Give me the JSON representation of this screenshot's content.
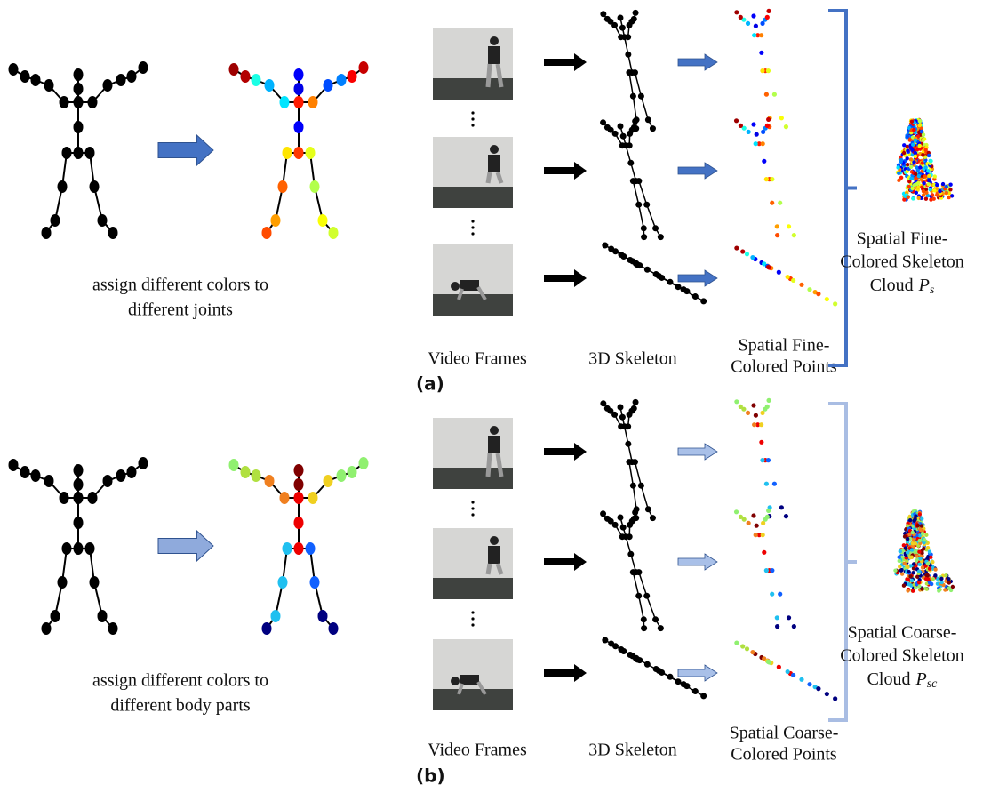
{
  "panels": [
    {
      "label": "(a)",
      "caption": [
        "assign different colors to",
        "different joints"
      ],
      "frames_label": "Video Frames",
      "skeleton_label": "3D Skeleton",
      "points_label": [
        "Spatial Fine-",
        "Colored Points"
      ],
      "cloud_label": [
        "Spatial Fine-",
        "Colored Skeleton"
      ],
      "cloud_prefix": "Cloud",
      "cloud_symbol": "P",
      "cloud_subscript": "s"
    },
    {
      "label": "(b)",
      "caption": [
        "assign different colors to",
        "different body parts"
      ],
      "frames_label": "Video Frames",
      "skeleton_label": "3D Skeleton",
      "points_label": [
        "Spatial Coarse-",
        "Colored Points"
      ],
      "cloud_label": [
        "Spatial Coarse-",
        "Colored Skeleton"
      ],
      "cloud_prefix": "Cloud",
      "cloud_symbol": "P",
      "cloud_subscript": "sc"
    }
  ]
}
